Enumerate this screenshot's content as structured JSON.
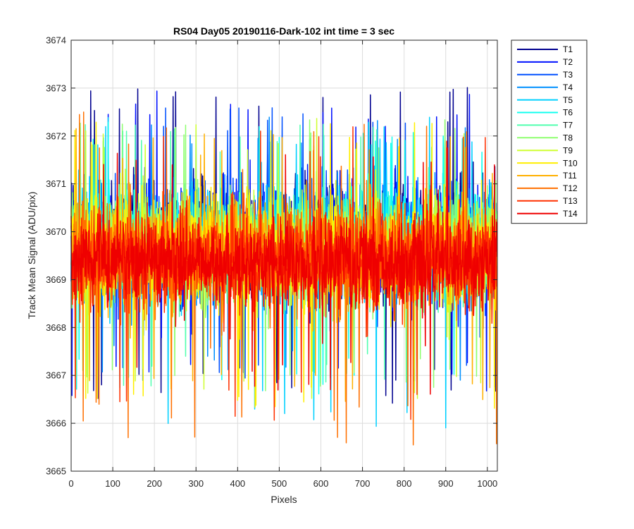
{
  "chart_data": {
    "type": "line",
    "title": "RS04 Day05 20190116-Dark-102 int time = 3 sec",
    "xlabel": "Pixels",
    "ylabel": "Track Mean Signal (ADU/pix)",
    "xlim": [
      0,
      1024
    ],
    "ylim": [
      3665,
      3674
    ],
    "xticks": [
      0,
      100,
      200,
      300,
      400,
      500,
      600,
      700,
      800,
      900,
      1000
    ],
    "yticks": [
      3665,
      3666,
      3667,
      3668,
      3669,
      3670,
      3671,
      3672,
      3673,
      3674
    ],
    "grid": true,
    "legend_position": "outside-right",
    "n_points": 1024,
    "series": [
      {
        "name": "T1",
        "color": "#00008f",
        "center": 3669.85,
        "spread": 0.95,
        "spike_max": 3673.1,
        "spike_min": 3666.3
      },
      {
        "name": "T2",
        "color": "#0010ff",
        "center": 3669.8,
        "spread": 0.95,
        "spike_max": 3672.97,
        "spike_min": 3666.45
      },
      {
        "name": "T3",
        "color": "#0050ff",
        "center": 3669.8,
        "spread": 0.9,
        "spike_max": 3672.6,
        "spike_min": 3666.7
      },
      {
        "name": "T4",
        "color": "#0090ff",
        "center": 3669.75,
        "spread": 0.9,
        "spike_max": 3672.5,
        "spike_min": 3666.8
      },
      {
        "name": "T5",
        "color": "#00d0ff",
        "center": 3669.75,
        "spread": 0.9,
        "spike_max": 3672.4,
        "spike_min": 3665.9
      },
      {
        "name": "T6",
        "color": "#10ffef",
        "center": 3669.7,
        "spread": 0.85,
        "spike_max": 3672.3,
        "spike_min": 3666.6
      },
      {
        "name": "T7",
        "color": "#50ffaf",
        "center": 3669.7,
        "spread": 0.85,
        "spike_max": 3672.3,
        "spike_min": 3666.7
      },
      {
        "name": "T8",
        "color": "#8fff70",
        "center": 3669.65,
        "spread": 0.85,
        "spike_max": 3672.4,
        "spike_min": 3666.6
      },
      {
        "name": "T9",
        "color": "#cfff30",
        "center": 3669.6,
        "spread": 0.85,
        "spike_max": 3672.4,
        "spike_min": 3666.5
      },
      {
        "name": "T10",
        "color": "#ffef00",
        "center": 3669.55,
        "spread": 0.85,
        "spike_max": 3672.3,
        "spike_min": 3665.9
      },
      {
        "name": "T11",
        "color": "#ffb000",
        "center": 3669.5,
        "spread": 0.85,
        "spike_max": 3672.2,
        "spike_min": 3666.3
      },
      {
        "name": "T12",
        "color": "#ff7000",
        "center": 3669.45,
        "spread": 0.85,
        "spike_max": 3672.5,
        "spike_min": 3665.5
      },
      {
        "name": "T13",
        "color": "#ff3000",
        "center": 3669.4,
        "spread": 0.8,
        "spike_max": 3672.2,
        "spike_min": 3666.0
      },
      {
        "name": "T14",
        "color": "#ef0000",
        "center": 3669.35,
        "spread": 0.75,
        "spike_max": 3671.9,
        "spike_min": 3666.6
      }
    ]
  }
}
